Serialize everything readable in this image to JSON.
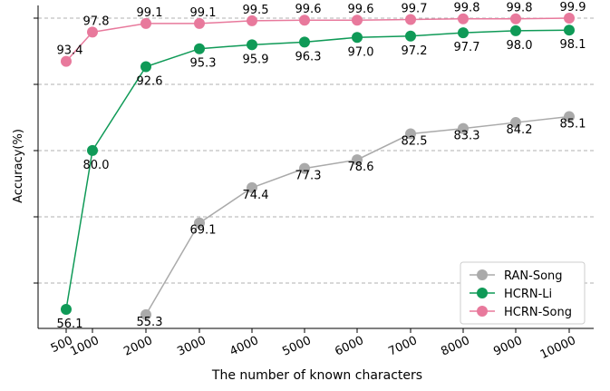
{
  "chart_data": {
    "type": "line",
    "title": "",
    "xlabel": "The number of known characters",
    "ylabel": "Accuracy(%)",
    "x": [
      500,
      1000,
      2000,
      3000,
      4000,
      5000,
      6000,
      7000,
      8000,
      9000,
      10000
    ],
    "x_tick_labels": [
      "500",
      "1000",
      "2000",
      "3000",
      "4000",
      "5000",
      "6000",
      "7000",
      "8000",
      "9000",
      "10000"
    ],
    "ylim": [
      53.5,
      101
    ],
    "grid": "horizontal dashed",
    "legend_position": "lower-right",
    "series": [
      {
        "name": "RAN-Song",
        "color": "#aaaaaa",
        "x": [
          2000,
          3000,
          4000,
          5000,
          6000,
          7000,
          8000,
          9000,
          10000
        ],
        "values": [
          55.3,
          69.1,
          74.4,
          77.3,
          78.6,
          82.5,
          83.3,
          84.2,
          85.1
        ]
      },
      {
        "name": "HCRN-Li",
        "color": "#0f9a57",
        "x": [
          500,
          1000,
          2000,
          3000,
          4000,
          5000,
          6000,
          7000,
          8000,
          9000,
          10000
        ],
        "values": [
          56.1,
          80.0,
          92.6,
          95.3,
          95.9,
          96.3,
          97.0,
          97.2,
          97.7,
          98.0,
          98.1
        ]
      },
      {
        "name": "HCRN-Song",
        "color": "#e8799c",
        "x": [
          500,
          1000,
          2000,
          3000,
          4000,
          5000,
          6000,
          7000,
          8000,
          9000,
          10000
        ],
        "values": [
          93.4,
          97.8,
          99.1,
          99.1,
          99.5,
          99.6,
          99.6,
          99.7,
          99.8,
          99.8,
          99.9
        ]
      }
    ]
  }
}
